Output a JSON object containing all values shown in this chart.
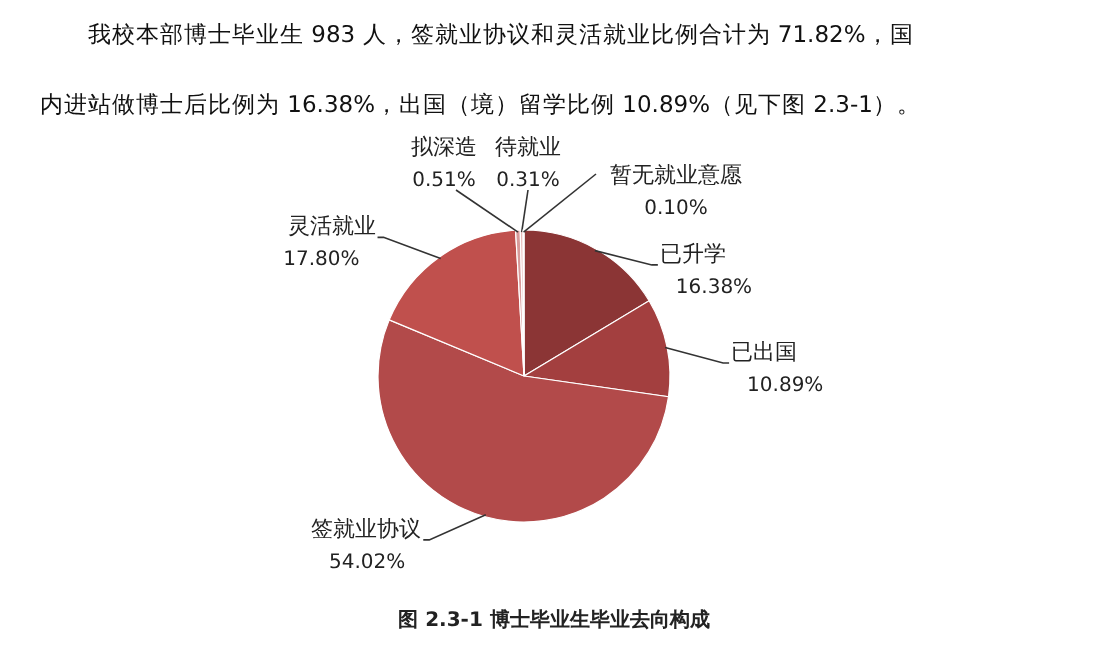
{
  "chart_data": {
    "type": "pie",
    "title": "图 2.3-1  博士毕业生毕业去向构成",
    "annotations": [
      "我校本部博士毕业生 983 人，签就业协议和灵活就业比例合计为 71.82%，国内进站做博士后比例为 16.38%，出国（境）留学比例 10.89%（见下图 2.3-1）。"
    ],
    "categories": [
      "已升学",
      "已出国",
      "签就业协议",
      "灵活就业",
      "拟深造",
      "待就业",
      "暂无就业意愿"
    ],
    "values": [
      16.38,
      10.89,
      54.02,
      17.8,
      0.51,
      0.31,
      0.1
    ],
    "value_labels": [
      "16.38%",
      "10.89%",
      "54.02%",
      "17.80%",
      "0.51%",
      "0.31%",
      "0.10%"
    ],
    "colors": [
      "#8b3535",
      "#a33f3f",
      "#b24a4a",
      "#c0504d",
      "#d79a9a",
      "#e6b9b8",
      "#f2dcdb"
    ]
  }
}
